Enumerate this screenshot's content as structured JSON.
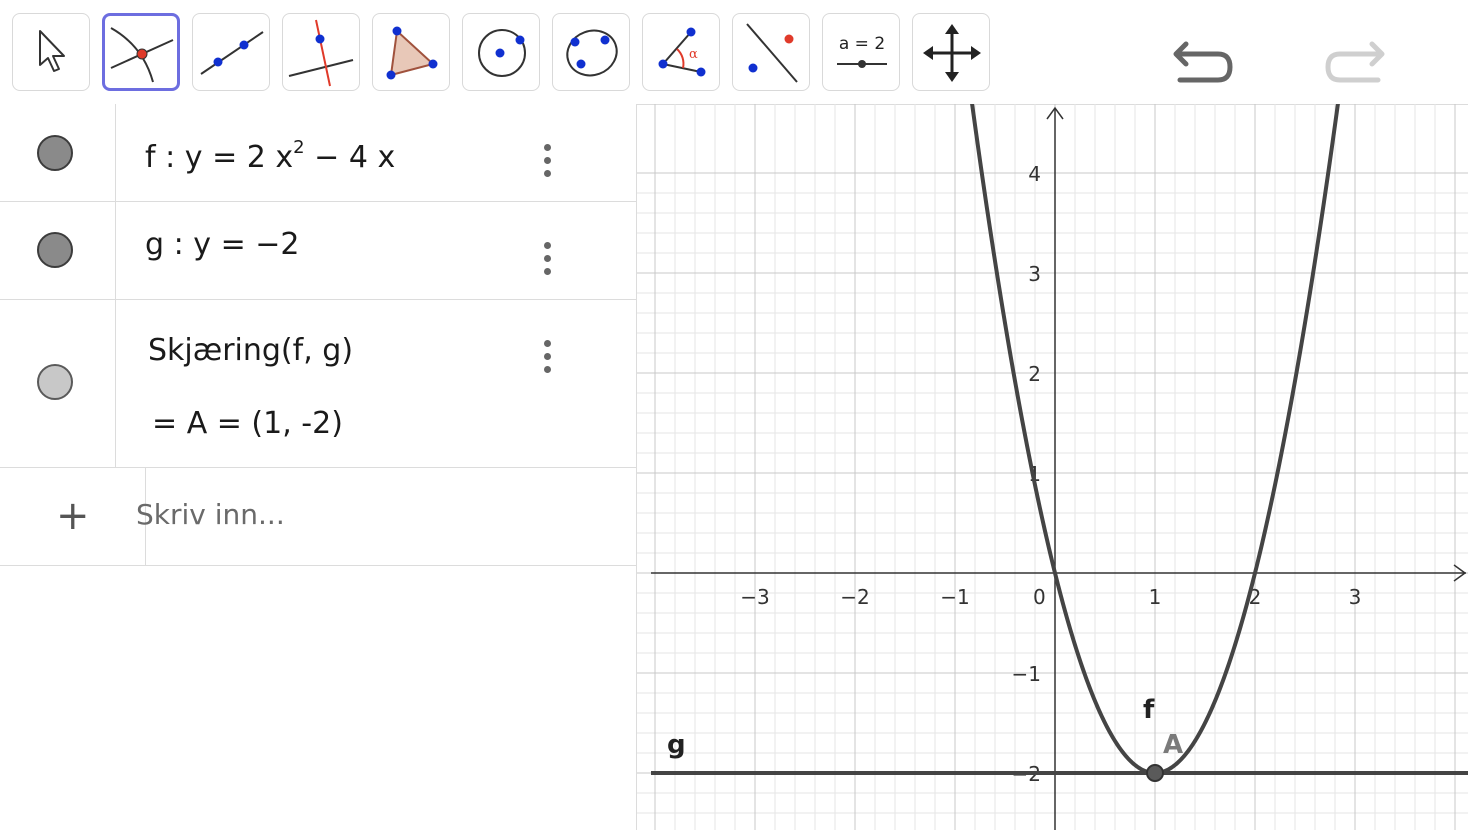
{
  "toolbar": {
    "tools": [
      {
        "name": "move-tool",
        "active": false
      },
      {
        "name": "intersect-tool",
        "active": true
      },
      {
        "name": "line-tool",
        "active": false
      },
      {
        "name": "perpendicular-line-tool",
        "active": false
      },
      {
        "name": "polygon-tool",
        "active": false
      },
      {
        "name": "circle-center-point-tool",
        "active": false
      },
      {
        "name": "conic-five-points-tool",
        "active": false
      },
      {
        "name": "angle-tool",
        "active": false
      },
      {
        "name": "reflect-about-line-tool",
        "active": false
      },
      {
        "name": "slider-tool",
        "active": false
      },
      {
        "name": "move-graphics-view-tool",
        "active": false
      }
    ],
    "angle_symbol": "α",
    "slider_label": "a = 2"
  },
  "algebra": {
    "rows": [
      {
        "name": "f",
        "colon": ":",
        "lhs": "y",
        "eq": "=",
        "rhs_a": "2 x",
        "rhs_exp": "2",
        "rhs_b": " − 4 x",
        "marble": "dark"
      },
      {
        "name": "g",
        "colon": ":",
        "lhs": "y",
        "eq": "=",
        "rhs": "−2",
        "marble": "dark"
      },
      {
        "command": "Skjæring(f, g)",
        "output_eq": "=",
        "output": "A = (1, -2)",
        "marble": "light"
      }
    ],
    "input_placeholder": "Skriv inn..."
  },
  "graphics": {
    "x_ticks": [
      "−3",
      "−2",
      "−1",
      "0",
      "1",
      "2",
      "3"
    ],
    "y_ticks": [
      "4",
      "3",
      "2",
      "1",
      "−1",
      "−2"
    ],
    "labels": {
      "f": "f",
      "g": "g",
      "A": "A"
    },
    "colors": {
      "curve": "#444444",
      "grid_minor": "#e6e6e6",
      "grid_major": "#c8c8c8",
      "point": "#5a5a5a",
      "label_A": "#7a7a7a"
    }
  },
  "chart_data": {
    "type": "line",
    "x_range": [
      -4,
      4
    ],
    "y_range": [
      -2.5,
      4.7
    ],
    "grid": true,
    "series": [
      {
        "name": "f",
        "formula": "2x^2 - 4x"
      },
      {
        "name": "g",
        "formula": "-2"
      }
    ],
    "points": [
      {
        "name": "A",
        "x": 1,
        "y": -2
      }
    ]
  }
}
